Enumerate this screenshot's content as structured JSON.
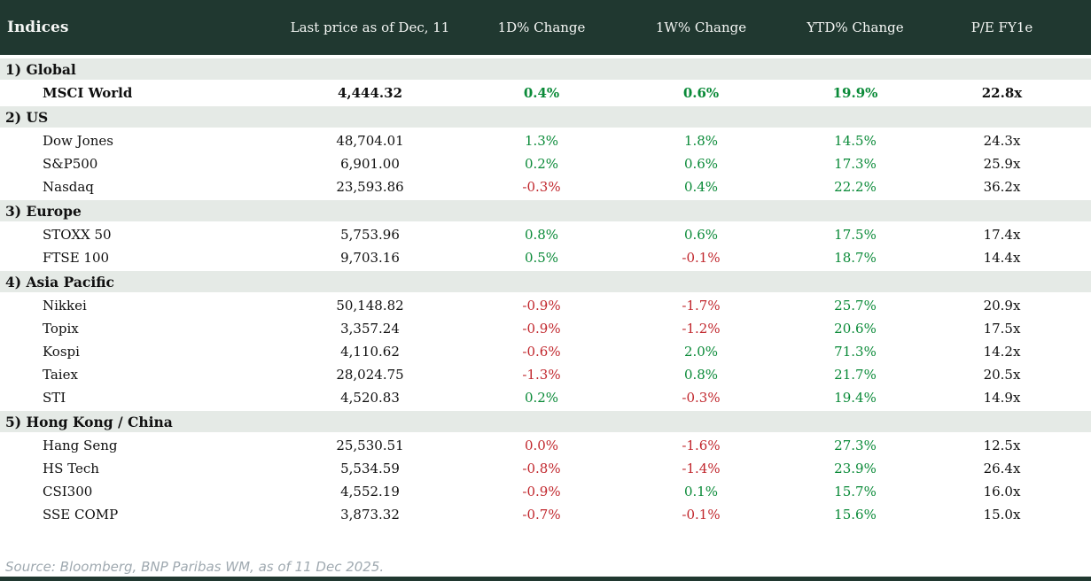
{
  "colors": {
    "header_bg": "#203830",
    "section_band_bg": "#e5eae6",
    "positive": "#0a8a38",
    "negative": "#c1272d",
    "source_text": "#9fa9b0"
  },
  "table": {
    "columns": [
      "Indices",
      "Last price as of Dec, 11",
      "1D% Change",
      "1W% Change",
      "YTD% Change",
      "P/E FY1e"
    ],
    "sections": [
      {
        "label": "1) Global",
        "rows": [
          {
            "name": "MSCI World",
            "price": "4,444.32",
            "chg_1d": {
              "text": "0.4%",
              "tone": "pos"
            },
            "chg_1w": {
              "text": "0.6%",
              "tone": "pos"
            },
            "ytd": {
              "text": "19.9%",
              "tone": "pos"
            },
            "pe": "22.8x",
            "emphasis": true
          }
        ]
      },
      {
        "label": "2) US",
        "rows": [
          {
            "name": "Dow Jones",
            "price": "48,704.01",
            "chg_1d": {
              "text": "1.3%",
              "tone": "pos"
            },
            "chg_1w": {
              "text": "1.8%",
              "tone": "pos"
            },
            "ytd": {
              "text": "14.5%",
              "tone": "pos"
            },
            "pe": "24.3x",
            "emphasis": false
          },
          {
            "name": "S&P500",
            "price": "6,901.00",
            "chg_1d": {
              "text": "0.2%",
              "tone": "pos"
            },
            "chg_1w": {
              "text": "0.6%",
              "tone": "pos"
            },
            "ytd": {
              "text": "17.3%",
              "tone": "pos"
            },
            "pe": "25.9x",
            "emphasis": false
          },
          {
            "name": "Nasdaq",
            "price": "23,593.86",
            "chg_1d": {
              "text": "-0.3%",
              "tone": "neg"
            },
            "chg_1w": {
              "text": "0.4%",
              "tone": "pos"
            },
            "ytd": {
              "text": "22.2%",
              "tone": "pos"
            },
            "pe": "36.2x",
            "emphasis": false
          }
        ]
      },
      {
        "label": "3) Europe",
        "rows": [
          {
            "name": "STOXX 50",
            "price": "5,753.96",
            "chg_1d": {
              "text": "0.8%",
              "tone": "pos"
            },
            "chg_1w": {
              "text": "0.6%",
              "tone": "pos"
            },
            "ytd": {
              "text": "17.5%",
              "tone": "pos"
            },
            "pe": "17.4x",
            "emphasis": false
          },
          {
            "name": "FTSE 100",
            "price": "9,703.16",
            "chg_1d": {
              "text": "0.5%",
              "tone": "pos"
            },
            "chg_1w": {
              "text": "-0.1%",
              "tone": "neg"
            },
            "ytd": {
              "text": "18.7%",
              "tone": "pos"
            },
            "pe": "14.4x",
            "emphasis": false
          }
        ]
      },
      {
        "label": "4) Asia Pacific",
        "rows": [
          {
            "name": "Nikkei",
            "price": "50,148.82",
            "chg_1d": {
              "text": "-0.9%",
              "tone": "neg"
            },
            "chg_1w": {
              "text": "-1.7%",
              "tone": "neg"
            },
            "ytd": {
              "text": "25.7%",
              "tone": "pos"
            },
            "pe": "20.9x",
            "emphasis": false
          },
          {
            "name": "Topix",
            "price": "3,357.24",
            "chg_1d": {
              "text": "-0.9%",
              "tone": "neg"
            },
            "chg_1w": {
              "text": "-1.2%",
              "tone": "neg"
            },
            "ytd": {
              "text": "20.6%",
              "tone": "pos"
            },
            "pe": "17.5x",
            "emphasis": false
          },
          {
            "name": "Kospi",
            "price": "4,110.62",
            "chg_1d": {
              "text": "-0.6%",
              "tone": "neg"
            },
            "chg_1w": {
              "text": "2.0%",
              "tone": "pos"
            },
            "ytd": {
              "text": "71.3%",
              "tone": "pos"
            },
            "pe": "14.2x",
            "emphasis": false
          },
          {
            "name": "Taiex",
            "price": "28,024.75",
            "chg_1d": {
              "text": "-1.3%",
              "tone": "neg"
            },
            "chg_1w": {
              "text": "0.8%",
              "tone": "pos"
            },
            "ytd": {
              "text": "21.7%",
              "tone": "pos"
            },
            "pe": "20.5x",
            "emphasis": false
          },
          {
            "name": "STI",
            "price": "4,520.83",
            "chg_1d": {
              "text": "0.2%",
              "tone": "pos"
            },
            "chg_1w": {
              "text": "-0.3%",
              "tone": "neg"
            },
            "ytd": {
              "text": "19.4%",
              "tone": "pos"
            },
            "pe": "14.9x",
            "emphasis": false
          }
        ]
      },
      {
        "label": "5) Hong Kong / China",
        "rows": [
          {
            "name": "Hang Seng",
            "price": "25,530.51",
            "chg_1d": {
              "text": "0.0%",
              "tone": "neg"
            },
            "chg_1w": {
              "text": "-1.6%",
              "tone": "neg"
            },
            "ytd": {
              "text": "27.3%",
              "tone": "pos"
            },
            "pe": "12.5x",
            "emphasis": false
          },
          {
            "name": "HS Tech",
            "price": "5,534.59",
            "chg_1d": {
              "text": "-0.8%",
              "tone": "neg"
            },
            "chg_1w": {
              "text": "-1.4%",
              "tone": "neg"
            },
            "ytd": {
              "text": "23.9%",
              "tone": "pos"
            },
            "pe": "26.4x",
            "emphasis": false
          },
          {
            "name": "CSI300",
            "price": "4,552.19",
            "chg_1d": {
              "text": "-0.9%",
              "tone": "neg"
            },
            "chg_1w": {
              "text": "0.1%",
              "tone": "pos"
            },
            "ytd": {
              "text": "15.7%",
              "tone": "pos"
            },
            "pe": "16.0x",
            "emphasis": false
          },
          {
            "name": "SSE COMP",
            "price": "3,873.32",
            "chg_1d": {
              "text": "-0.7%",
              "tone": "neg"
            },
            "chg_1w": {
              "text": "-0.1%",
              "tone": "neg"
            },
            "ytd": {
              "text": "15.6%",
              "tone": "pos"
            },
            "pe": "15.0x",
            "emphasis": false
          }
        ]
      }
    ]
  },
  "footer": {
    "source": "Source: Bloomberg, BNP Paribas WM, as of 11 Dec 2025."
  },
  "chart_data": {
    "type": "table",
    "title": "Indices",
    "columns": [
      "Indices",
      "Last price as of Dec, 11",
      "1D% Change",
      "1W% Change",
      "YTD% Change",
      "P/E FY1e"
    ],
    "groups": [
      "1) Global",
      "2) US",
      "3) Europe",
      "4) Asia Pacific",
      "5) Hong Kong / China"
    ],
    "rows": [
      [
        "1) Global",
        "MSCI World",
        "4,444.32",
        "0.4%",
        "0.6%",
        "19.9%",
        "22.8x"
      ],
      [
        "2) US",
        "Dow Jones",
        "48,704.01",
        "1.3%",
        "1.8%",
        "14.5%",
        "24.3x"
      ],
      [
        "2) US",
        "S&P500",
        "6,901.00",
        "0.2%",
        "0.6%",
        "17.3%",
        "25.9x"
      ],
      [
        "2) US",
        "Nasdaq",
        "23,593.86",
        "-0.3%",
        "0.4%",
        "22.2%",
        "36.2x"
      ],
      [
        "3) Europe",
        "STOXX 50",
        "5,753.96",
        "0.8%",
        "0.6%",
        "17.5%",
        "17.4x"
      ],
      [
        "3) Europe",
        "FTSE 100",
        "9,703.16",
        "0.5%",
        "-0.1%",
        "18.7%",
        "14.4x"
      ],
      [
        "4) Asia Pacific",
        "Nikkei",
        "50,148.82",
        "-0.9%",
        "-1.7%",
        "25.7%",
        "20.9x"
      ],
      [
        "4) Asia Pacific",
        "Topix",
        "3,357.24",
        "-0.9%",
        "-1.2%",
        "20.6%",
        "17.5x"
      ],
      [
        "4) Asia Pacific",
        "Kospi",
        "4,110.62",
        "-0.6%",
        "2.0%",
        "71.3%",
        "14.2x"
      ],
      [
        "4) Asia Pacific",
        "Taiex",
        "28,024.75",
        "-1.3%",
        "0.8%",
        "21.7%",
        "20.5x"
      ],
      [
        "4) Asia Pacific",
        "STI",
        "4,520.83",
        "0.2%",
        "-0.3%",
        "19.4%",
        "14.9x"
      ],
      [
        "5) Hong Kong / China",
        "Hang Seng",
        "25,530.51",
        "0.0%",
        "-1.6%",
        "27.3%",
        "12.5x"
      ],
      [
        "5) Hong Kong / China",
        "HS Tech",
        "5,534.59",
        "-0.8%",
        "-1.4%",
        "23.9%",
        "26.4x"
      ],
      [
        "5) Hong Kong / China",
        "CSI300",
        "4,552.19",
        "-0.9%",
        "0.1%",
        "15.7%",
        "16.0x"
      ],
      [
        "5) Hong Kong / China",
        "SSE COMP",
        "3,873.32",
        "-0.7%",
        "-0.1%",
        "15.6%",
        "15.0x"
      ]
    ],
    "source": "Source: Bloomberg, BNP Paribas WM, as of 11 Dec 2025."
  }
}
